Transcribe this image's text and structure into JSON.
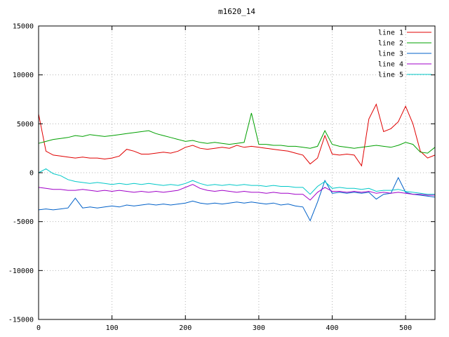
{
  "title": "m1620_14",
  "chart_data": {
    "type": "line",
    "title": "m1620_14",
    "xlabel": "",
    "ylabel": "",
    "xlim": [
      0,
      540
    ],
    "ylim": [
      -15000,
      15000
    ],
    "x_ticks": [
      0,
      100,
      200,
      300,
      400,
      500
    ],
    "y_ticks": [
      -15000,
      -10000,
      -5000,
      0,
      5000,
      10000,
      15000
    ],
    "grid": true,
    "legend_position": "top-right-inside",
    "background": "#ffffff",
    "grid_color": "#b4b4b4",
    "axis_color": "#000000",
    "x": [
      0,
      10,
      20,
      30,
      40,
      50,
      60,
      70,
      80,
      90,
      100,
      110,
      120,
      130,
      140,
      150,
      160,
      170,
      180,
      190,
      200,
      210,
      220,
      230,
      240,
      250,
      260,
      270,
      280,
      290,
      300,
      310,
      320,
      330,
      340,
      350,
      360,
      370,
      380,
      390,
      400,
      410,
      420,
      430,
      440,
      450,
      460,
      470,
      480,
      490,
      500,
      510,
      520,
      530,
      540
    ],
    "series": [
      {
        "name": "line 1",
        "color": "#e00000",
        "values": [
          6000,
          2200,
          1800,
          1700,
          1600,
          1500,
          1600,
          1500,
          1500,
          1400,
          1500,
          1700,
          2400,
          2200,
          1900,
          1900,
          2000,
          2100,
          2000,
          2200,
          2600,
          2800,
          2500,
          2400,
          2500,
          2600,
          2500,
          2800,
          2600,
          2700,
          2600,
          2500,
          2400,
          2300,
          2200,
          2000,
          1800,
          900,
          1500,
          3800,
          1900,
          1800,
          1900,
          1800,
          700,
          5500,
          7000,
          4200,
          4500,
          5200,
          6800,
          5000,
          2200,
          1500,
          1800
        ]
      },
      {
        "name": "line 2",
        "color": "#00a000",
        "values": [
          3000,
          3200,
          3400,
          3500,
          3600,
          3800,
          3700,
          3900,
          3800,
          3700,
          3800,
          3900,
          4000,
          4100,
          4200,
          4300,
          4000,
          3800,
          3600,
          3400,
          3200,
          3300,
          3100,
          3000,
          3100,
          3000,
          2900,
          3000,
          3100,
          6100,
          2900,
          2900,
          2800,
          2800,
          2700,
          2700,
          2600,
          2500,
          2700,
          4300,
          2900,
          2700,
          2600,
          2500,
          2600,
          2700,
          2800,
          2700,
          2600,
          2800,
          3100,
          2900,
          2100,
          2000,
          2600
        ]
      },
      {
        "name": "line 3",
        "color": "#0060c8",
        "values": [
          -3800,
          -3700,
          -3800,
          -3700,
          -3600,
          -2600,
          -3600,
          -3500,
          -3600,
          -3500,
          -3400,
          -3500,
          -3300,
          -3400,
          -3300,
          -3200,
          -3300,
          -3200,
          -3300,
          -3200,
          -3100,
          -2900,
          -3100,
          -3200,
          -3100,
          -3200,
          -3100,
          -3000,
          -3100,
          -3000,
          -3100,
          -3200,
          -3100,
          -3300,
          -3200,
          -3400,
          -3500,
          -4900,
          -3000,
          -800,
          -2100,
          -2000,
          -2100,
          -2000,
          -2100,
          -2000,
          -2700,
          -2200,
          -2100,
          -500,
          -2000,
          -2200,
          -2300,
          -2400,
          -2500
        ]
      },
      {
        "name": "line 4",
        "color": "#a000c8",
        "values": [
          -1500,
          -1600,
          -1700,
          -1700,
          -1800,
          -1800,
          -1700,
          -1800,
          -1900,
          -1800,
          -1900,
          -1800,
          -1900,
          -2000,
          -1900,
          -2000,
          -1900,
          -2000,
          -1900,
          -1800,
          -1500,
          -1200,
          -1600,
          -1800,
          -1900,
          -1800,
          -1900,
          -2000,
          -1900,
          -2000,
          -2000,
          -2100,
          -2000,
          -2100,
          -2100,
          -2200,
          -2200,
          -2800,
          -2000,
          -1500,
          -1900,
          -1900,
          -2000,
          -1900,
          -2000,
          -1900,
          -2100,
          -2000,
          -2100,
          -2000,
          -2100,
          -2200,
          -2200,
          -2300,
          -2300
        ]
      },
      {
        "name": "line 5",
        "color": "#00c8c8",
        "values": [
          0,
          400,
          -100,
          -300,
          -700,
          -900,
          -1000,
          -1100,
          -1000,
          -1100,
          -1200,
          -1100,
          -1200,
          -1100,
          -1200,
          -1100,
          -1200,
          -1300,
          -1200,
          -1300,
          -1100,
          -800,
          -1100,
          -1300,
          -1200,
          -1300,
          -1200,
          -1300,
          -1200,
          -1300,
          -1300,
          -1400,
          -1300,
          -1400,
          -1400,
          -1500,
          -1500,
          -2200,
          -1400,
          -900,
          -1600,
          -1500,
          -1600,
          -1600,
          -1700,
          -1600,
          -1900,
          -1800,
          -1800,
          -1700,
          -1900,
          -2000,
          -2100,
          -2200,
          -2200
        ]
      }
    ]
  }
}
